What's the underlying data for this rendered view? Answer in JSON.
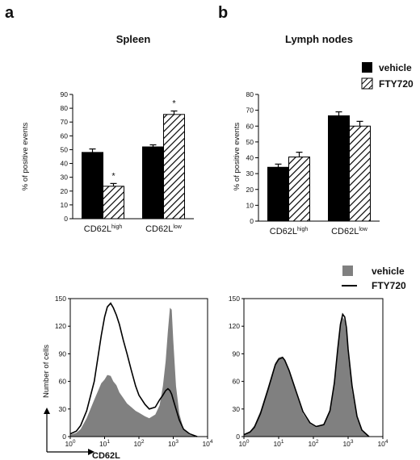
{
  "panel_labels": [
    "a",
    "b"
  ],
  "bar_legend": {
    "vehicle": "vehicle",
    "fty": "FTY720"
  },
  "hist_legend": {
    "vehicle": "vehicle",
    "fty": "FTY720"
  },
  "hist_x_axis_label": "CD62L",
  "chart_data": [
    {
      "type": "bar",
      "title": "Spleen",
      "ylabel": "% of positive events",
      "ylim": [
        0,
        90
      ],
      "yticks": [
        0,
        10,
        20,
        30,
        40,
        50,
        60,
        70,
        80,
        90
      ],
      "categories": [
        {
          "base": "CD62L",
          "sup": "high"
        },
        {
          "base": "CD62L",
          "sup": "low"
        }
      ],
      "series": [
        {
          "name": "vehicle",
          "values": [
            48,
            52
          ],
          "errors": [
            2.5,
            1.5
          ],
          "color": "#000000"
        },
        {
          "name": "FTY720",
          "values": [
            23.5,
            75.5
          ],
          "errors": [
            2.0,
            2.5
          ],
          "color": "#hatched"
        }
      ],
      "significance": [
        {
          "category": 0,
          "series": 1,
          "label": "*"
        },
        {
          "category": 1,
          "series": 1,
          "label": "*"
        }
      ]
    },
    {
      "type": "bar",
      "title": "Lymph nodes",
      "ylabel": "% of positive events",
      "ylim": [
        0,
        80
      ],
      "yticks": [
        0,
        10,
        20,
        30,
        40,
        50,
        60,
        70,
        80
      ],
      "categories": [
        {
          "base": "CD62L",
          "sup": "high"
        },
        {
          "base": "CD62L",
          "sup": "low"
        }
      ],
      "series": [
        {
          "name": "vehicle",
          "values": [
            34,
            66.5
          ],
          "errors": [
            2.0,
            2.5
          ],
          "color": "#000000"
        },
        {
          "name": "FTY720",
          "values": [
            40.5,
            60
          ],
          "errors": [
            3.0,
            3.0
          ],
          "color": "#hatched"
        }
      ]
    },
    {
      "type": "area",
      "title": "",
      "xlabel": "CD62L",
      "ylabel": "Number of cells",
      "x_scale": "log",
      "xlim": [
        1,
        10000
      ],
      "xtick_values": [
        1,
        10,
        100,
        1000,
        10000
      ],
      "xtick_labels": [
        {
          "base": "10",
          "exp": "0"
        },
        {
          "base": "10",
          "exp": "1"
        },
        {
          "base": "10",
          "exp": "2"
        },
        {
          "base": "10",
          "exp": "3"
        },
        {
          "base": "10",
          "exp": "4"
        }
      ],
      "ylim": [
        0,
        150
      ],
      "yticks": [
        0,
        30,
        60,
        90,
        120,
        150
      ],
      "series": [
        {
          "name": "vehicle",
          "style": "filled",
          "color": "#808080",
          "x": [
            1,
            1.5,
            2,
            3,
            5,
            8,
            10,
            12,
            15,
            18,
            22,
            27,
            35,
            45,
            60,
            80,
            100,
            150,
            200,
            300,
            400,
            500,
            600,
            700,
            800,
            900,
            1000,
            1200,
            1500,
            2000,
            3000,
            5000
          ],
          "y": [
            2,
            4,
            8,
            20,
            40,
            58,
            62,
            67,
            66,
            60,
            56,
            48,
            42,
            36,
            32,
            28,
            26,
            22,
            20,
            24,
            34,
            55,
            82,
            115,
            140,
            138,
            105,
            55,
            25,
            8,
            2,
            0
          ]
        },
        {
          "name": "FTY720",
          "style": "line",
          "color": "#000000",
          "x": [
            1,
            1.5,
            2,
            3,
            5,
            8,
            10,
            12,
            15,
            18,
            22,
            27,
            35,
            45,
            60,
            80,
            100,
            150,
            200,
            300,
            400,
            500,
            600,
            700,
            800,
            900,
            1000,
            1200,
            1500,
            2000,
            3000,
            5000
          ],
          "y": [
            3,
            6,
            12,
            28,
            60,
            110,
            130,
            141,
            145,
            140,
            132,
            122,
            105,
            90,
            72,
            55,
            45,
            35,
            30,
            32,
            40,
            45,
            50,
            52,
            50,
            46,
            40,
            30,
            18,
            8,
            3,
            0
          ]
        }
      ]
    },
    {
      "type": "area",
      "title": "",
      "x_scale": "log",
      "xlim": [
        1,
        10000
      ],
      "xtick_values": [
        1,
        10,
        100,
        1000,
        10000
      ],
      "xtick_labels": [
        {
          "base": "10",
          "exp": "0"
        },
        {
          "base": "10",
          "exp": "1"
        },
        {
          "base": "10",
          "exp": "2"
        },
        {
          "base": "10",
          "exp": "3"
        },
        {
          "base": "10",
          "exp": "4"
        }
      ],
      "ylim": [
        0,
        150
      ],
      "yticks": [
        0,
        30,
        60,
        90,
        120,
        150
      ],
      "series": [
        {
          "name": "vehicle",
          "style": "filled",
          "color": "#808080",
          "x": [
            1,
            1.5,
            2,
            3,
            5,
            8,
            10,
            13,
            15,
            20,
            30,
            50,
            80,
            120,
            200,
            300,
            400,
            500,
            600,
            700,
            800,
            900,
            1000,
            1300,
            1800,
            2500,
            4000
          ],
          "y": [
            3,
            6,
            12,
            28,
            55,
            80,
            86,
            87,
            84,
            72,
            50,
            25,
            14,
            10,
            14,
            30,
            62,
            98,
            125,
            130,
            126,
            112,
            90,
            50,
            20,
            6,
            0
          ]
        },
        {
          "name": "FTY720",
          "style": "line",
          "color": "#000000",
          "x": [
            1,
            1.5,
            2,
            3,
            5,
            8,
            10,
            13,
            15,
            20,
            30,
            50,
            80,
            120,
            200,
            300,
            400,
            500,
            600,
            700,
            800,
            900,
            1000,
            1300,
            1800,
            2500,
            4000
          ],
          "y": [
            2,
            5,
            10,
            25,
            52,
            78,
            84,
            86,
            83,
            72,
            52,
            27,
            15,
            11,
            13,
            28,
            58,
            95,
            122,
            133,
            130,
            118,
            95,
            55,
            22,
            7,
            0
          ]
        }
      ]
    }
  ]
}
